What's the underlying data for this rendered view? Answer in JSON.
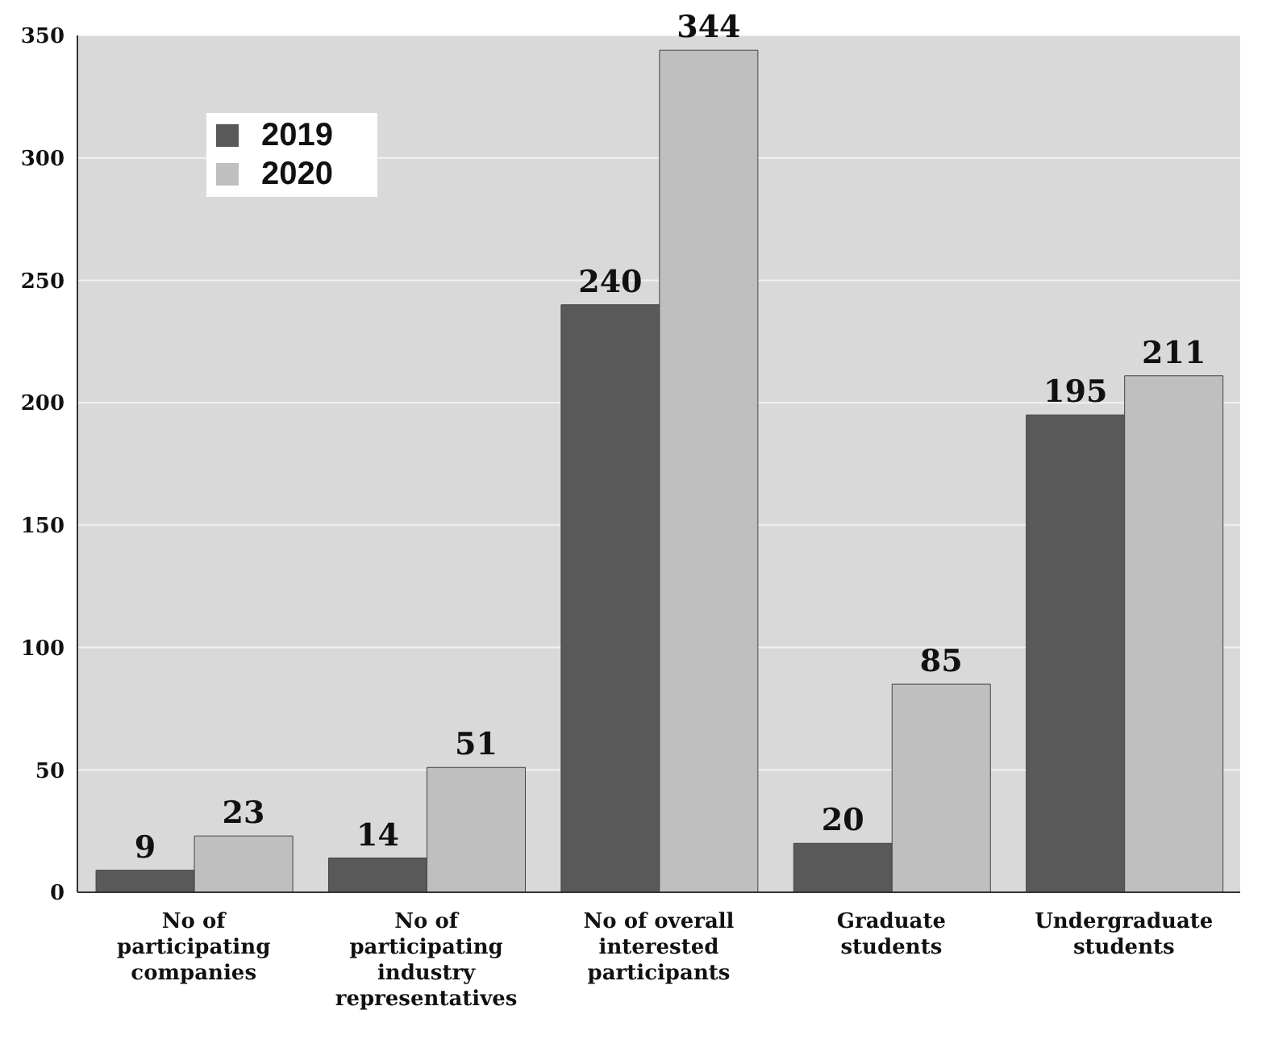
{
  "chart_data": {
    "type": "bar",
    "categories": [
      "No of participating companies",
      "No of participating industry representatives",
      "No of overall interested participants",
      "Graduate students",
      "Undergraduate students"
    ],
    "series": [
      {
        "name": "2019",
        "color": "#595959",
        "values": [
          9,
          14,
          240,
          20,
          195
        ]
      },
      {
        "name": "2020",
        "color": "#bfbfbf",
        "values": [
          23,
          51,
          344,
          85,
          211
        ]
      }
    ],
    "ylim": [
      0,
      350
    ],
    "yticks": [
      0,
      50,
      100,
      150,
      200,
      250,
      300,
      350
    ],
    "grid": "y",
    "legend": "top left",
    "data_labels": true
  }
}
